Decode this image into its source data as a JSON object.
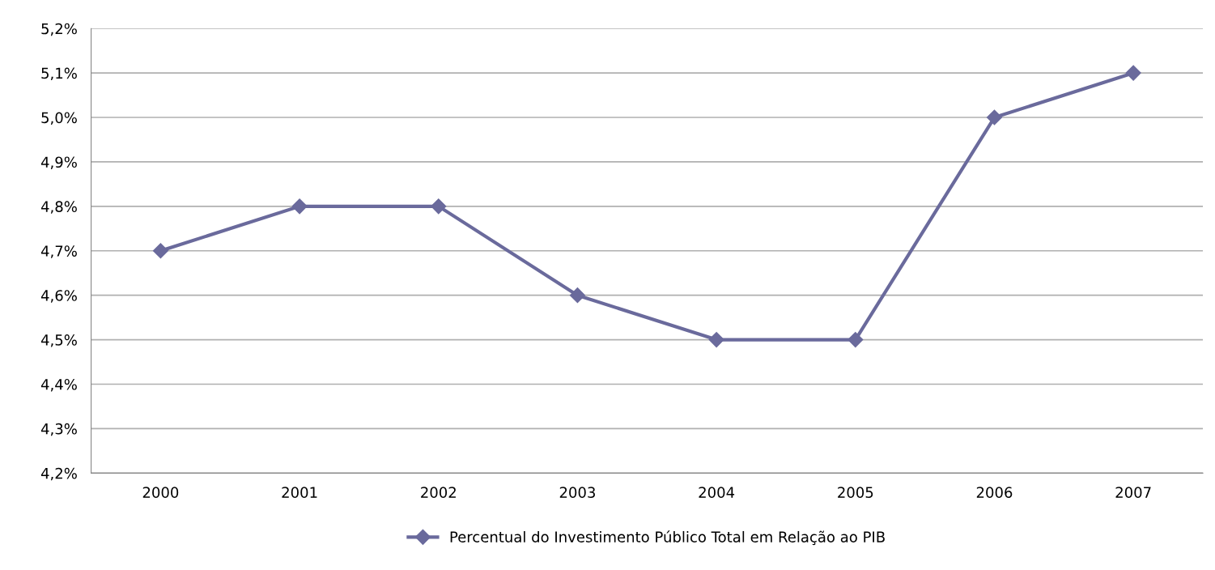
{
  "chart_data": {
    "type": "line",
    "categories": [
      "2000",
      "2001",
      "2002",
      "2003",
      "2004",
      "2005",
      "2006",
      "2007"
    ],
    "series": [
      {
        "name": "Percentual do Investimento Público Total em Relação ao PIB",
        "color": "#6a6a9c",
        "values": [
          4.7,
          4.8,
          4.8,
          4.6,
          4.5,
          4.5,
          5.0,
          5.1
        ]
      }
    ],
    "ylim": [
      4.2,
      5.2
    ],
    "yticks": [
      {
        "value": 4.2,
        "label": "4,2%"
      },
      {
        "value": 4.3,
        "label": "4,3%"
      },
      {
        "value": 4.4,
        "label": "4,4%"
      },
      {
        "value": 4.5,
        "label": "4,5%"
      },
      {
        "value": 4.6,
        "label": "4,6%"
      },
      {
        "value": 4.7,
        "label": "4,7%"
      },
      {
        "value": 4.8,
        "label": "4,8%"
      },
      {
        "value": 4.9,
        "label": "4,9%"
      },
      {
        "value": 5.0,
        "label": "5,0%"
      },
      {
        "value": 5.1,
        "label": "5,1%"
      },
      {
        "value": 5.2,
        "label": "5,2%"
      }
    ],
    "grid": "y",
    "legend": "bottom",
    "marker": "diamond",
    "line_style": "solid"
  }
}
